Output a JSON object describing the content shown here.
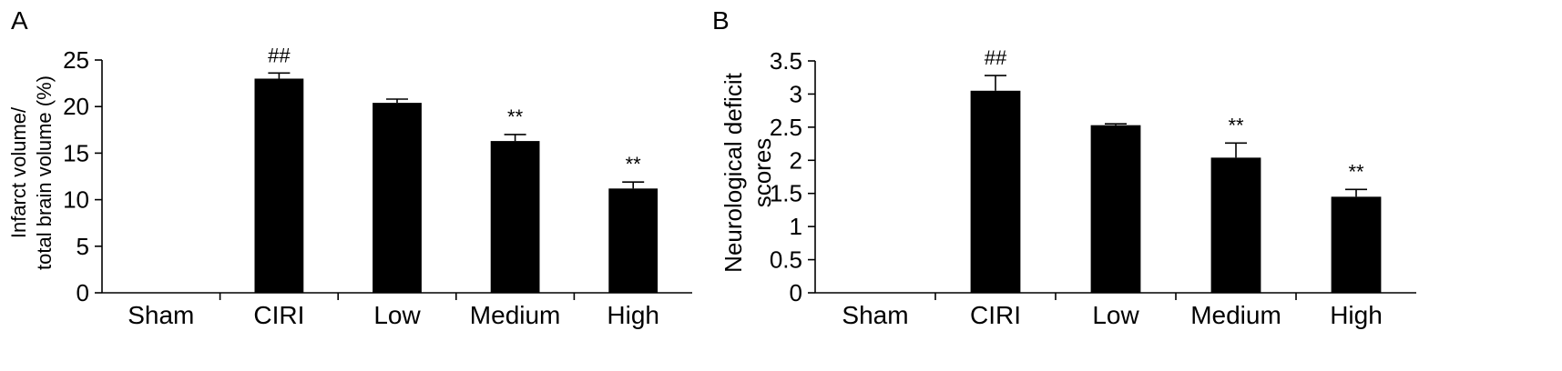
{
  "chart_data": [
    {
      "type": "bar",
      "panel": "A",
      "ylabel_lines": [
        "Infarct volume/",
        "total brain volume (%)"
      ],
      "categories": [
        "Sham",
        "CIRI",
        "Low",
        "Medium",
        "High"
      ],
      "values": [
        0,
        23.0,
        20.4,
        16.3,
        11.2
      ],
      "errors": [
        0,
        0.6,
        0.4,
        0.7,
        0.7
      ],
      "annotations": [
        "",
        "##",
        "",
        "**",
        "**"
      ],
      "yticks": [
        "0",
        "5",
        "10",
        "15",
        "20",
        "25"
      ],
      "ylim": [
        0,
        25
      ],
      "bar_color": "#000000",
      "grid": false
    },
    {
      "type": "bar",
      "panel": "B",
      "ylabel_lines": [
        "Neurological deficit",
        "scores"
      ],
      "categories": [
        "Sham",
        "CIRI",
        "Low",
        "Medium",
        "High"
      ],
      "values": [
        0,
        3.05,
        2.53,
        2.04,
        1.45
      ],
      "errors": [
        0,
        0.23,
        0.02,
        0.22,
        0.11
      ],
      "annotations": [
        "",
        "##",
        "",
        "**",
        "**"
      ],
      "yticks": [
        "0",
        "0.5",
        "1",
        "1.5",
        "2",
        "2.5",
        "3",
        "3.5"
      ],
      "ylim": [
        0,
        3.5
      ],
      "bar_color": "#000000",
      "grid": false
    }
  ]
}
